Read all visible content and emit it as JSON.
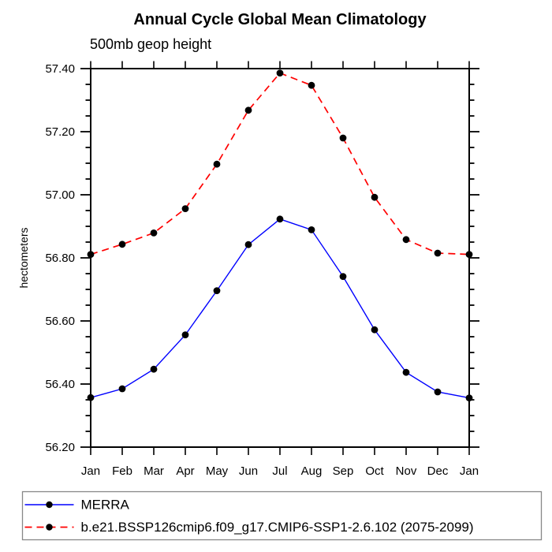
{
  "title": "Annual Cycle Global Mean Climatology",
  "subtitle": "500mb geop height",
  "ylabel": "hectometers",
  "chart_data": {
    "type": "line",
    "categories": [
      "Jan",
      "Feb",
      "Mar",
      "Apr",
      "May",
      "Jun",
      "Jul",
      "Aug",
      "Sep",
      "Oct",
      "Nov",
      "Dec",
      "Jan"
    ],
    "series": [
      {
        "name": "MERRA",
        "color": "#0000ff",
        "line_style": "solid",
        "marker": "filled-circle",
        "marker_color": "#000000",
        "values": [
          56.357,
          56.385,
          56.447,
          56.556,
          56.696,
          56.842,
          56.923,
          56.889,
          56.741,
          56.572,
          56.437,
          56.375,
          56.356
        ]
      },
      {
        "name": "b.e21.BSSP126cmip6.f09_g17.CMIP6-SSP1-2.6.102 (2075-2099)",
        "color": "#ff0000",
        "line_style": "dashed",
        "marker": "filled-circle",
        "marker_color": "#000000",
        "values": [
          56.811,
          56.843,
          56.879,
          56.956,
          57.097,
          57.268,
          57.386,
          57.347,
          57.18,
          56.992,
          56.858,
          56.815,
          56.811
        ]
      }
    ],
    "xlabel": "",
    "ylabel": "hectometers",
    "ylim": [
      56.2,
      57.4
    ],
    "ytick_major_interval": 0.2,
    "ytick_minor_interval": 0.05,
    "ytick_labels": [
      "56.20",
      "56.40",
      "56.60",
      "56.80",
      "57.00",
      "57.20",
      "57.40"
    ],
    "grid": false,
    "axis_color": "#000000",
    "legend_position": "bottom-box"
  }
}
